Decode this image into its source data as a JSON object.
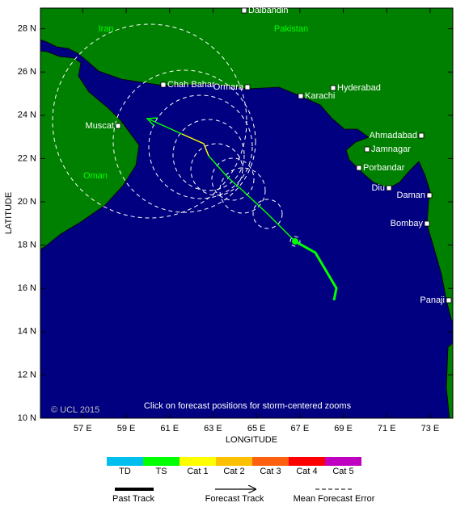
{
  "map": {
    "countries": [
      "Iran",
      "Pakistan",
      "Oman"
    ],
    "places": [
      "Dalbandin",
      "Chah Bahar",
      "Ormara",
      "Karachi",
      "Hyderabad",
      "Muscat",
      "Ahmadabad",
      "Jamnagar",
      "Porbandar",
      "Diu",
      "Daman",
      "Bombay",
      "Panaji"
    ],
    "copyright": "© UCL 2015",
    "note": "Click on forecast positions for storm-centered zooms",
    "x_axis": {
      "label": "LONGITUDE",
      "ticks": [
        {
          "value": 57,
          "label": "57 E"
        },
        {
          "value": 59,
          "label": "59 E"
        },
        {
          "value": 61,
          "label": "61 E"
        },
        {
          "value": 63,
          "label": "63 E"
        },
        {
          "value": 65,
          "label": "65 E"
        },
        {
          "value": 67,
          "label": "67 E"
        },
        {
          "value": 69,
          "label": "69 E"
        },
        {
          "value": 71,
          "label": "71 E"
        },
        {
          "value": 73,
          "label": "73 E"
        }
      ]
    },
    "y_axis": {
      "label": "LATITUDE",
      "ticks": [
        {
          "value": 10,
          "label": "10 N"
        },
        {
          "value": 12,
          "label": "12 N"
        },
        {
          "value": 14,
          "label": "14 N"
        },
        {
          "value": 16,
          "label": "16 N"
        },
        {
          "value": 18,
          "label": "18 N"
        },
        {
          "value": 20,
          "label": "20 N"
        },
        {
          "value": 22,
          "label": "22 N"
        },
        {
          "value": 24,
          "label": "24 N"
        },
        {
          "value": 26,
          "label": "26 N"
        },
        {
          "value": 28,
          "label": "28 N"
        }
      ]
    }
  },
  "legend": {
    "categories": [
      {
        "label": "TD",
        "color": "#00bfef"
      },
      {
        "label": "TS",
        "color": "#00ff00"
      },
      {
        "label": "Cat 1",
        "color": "#ffff00"
      },
      {
        "label": "Cat 2",
        "color": "#ffc000"
      },
      {
        "label": "Cat 3",
        "color": "#ff6010"
      },
      {
        "label": "Cat 4",
        "color": "#ff0000"
      },
      {
        "label": "Cat 5",
        "color": "#c000c0"
      }
    ],
    "lines": [
      "Past Track",
      "Forecast Track",
      "Mean Forecast Error"
    ]
  }
}
